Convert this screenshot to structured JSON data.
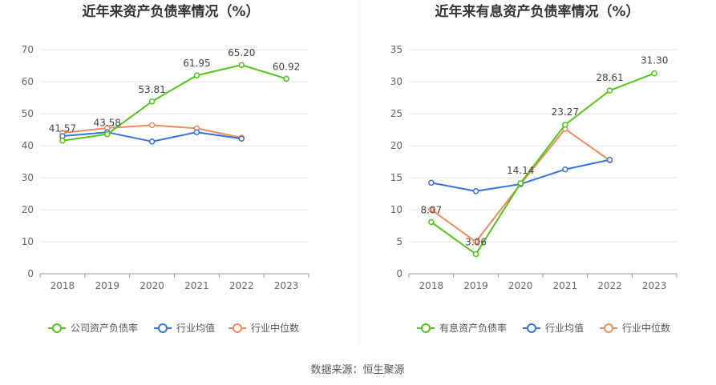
{
  "footer": {
    "source": "数据来源：恒生聚源"
  },
  "colors": {
    "company": "#52c41a",
    "industry_avg": "#3b72d9",
    "industry_median": "#f08a5d"
  },
  "chart_data": [
    {
      "type": "line",
      "title": "近年来资产负债率情况（%）",
      "categories": [
        "2018",
        "2019",
        "2020",
        "2021",
        "2022",
        "2023"
      ],
      "ylim": [
        0,
        70
      ],
      "yticks": [
        "0",
        "10",
        "20",
        "30",
        "40",
        "50",
        "60",
        "70"
      ],
      "grid": true,
      "legend_position": "bottom",
      "series": [
        {
          "name": "公司资产负债率",
          "values": [
            41.57,
            43.58,
            53.81,
            61.95,
            65.2,
            60.92
          ],
          "labels": [
            "41.57",
            "43.58",
            "53.81",
            "61.95",
            "65.20",
            "60.92"
          ]
        },
        {
          "name": "行业均值",
          "values": [
            43.0,
            44.2,
            41.3,
            44.2,
            42.2,
            null
          ]
        },
        {
          "name": "行业中位数",
          "values": [
            44.0,
            45.5,
            46.4,
            45.4,
            42.5,
            null
          ]
        }
      ]
    },
    {
      "type": "line",
      "title": "近年来有息资产负债率情况（%）",
      "categories": [
        "2018",
        "2019",
        "2020",
        "2021",
        "2022",
        "2023"
      ],
      "ylim": [
        0,
        35
      ],
      "yticks": [
        "0",
        "5",
        "10",
        "15",
        "20",
        "25",
        "30",
        "35"
      ],
      "grid": true,
      "legend_position": "bottom",
      "series": [
        {
          "name": "有息资产负债率",
          "values": [
            8.07,
            3.06,
            14.14,
            23.27,
            28.61,
            31.3
          ],
          "labels": [
            "8.07",
            "3.06",
            "14.14",
            "23.27",
            "28.61",
            "31.30"
          ]
        },
        {
          "name": "行业均值",
          "values": [
            14.2,
            12.9,
            14.0,
            16.3,
            17.8,
            null
          ]
        },
        {
          "name": "行业中位数",
          "values": [
            10.0,
            5.0,
            14.0,
            22.6,
            17.7,
            null
          ]
        }
      ]
    }
  ]
}
